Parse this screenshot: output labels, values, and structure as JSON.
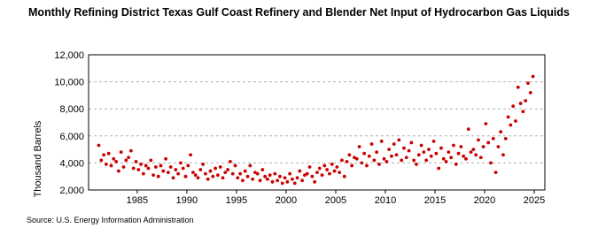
{
  "chart_data": {
    "type": "scatter",
    "title": "Monthly Refining District Texas Gulf Coast Refinery and Blender Net Input of Hydrocarbon Gas Liquids",
    "y_label": "Thousand Barrels",
    "source": "Source: U.S. Energy Information Administration",
    "color": "#cc0000",
    "grid": true,
    "xlim": [
      1980.1,
      2026.07
    ],
    "ylim": [
      2000,
      12000
    ],
    "xticks": [
      1985,
      1990,
      1995,
      2000,
      2005,
      2010,
      2015,
      2020,
      2025
    ],
    "yticks": [
      {
        "value": 2000,
        "label": "2,000"
      },
      {
        "value": 4000,
        "label": "4,000"
      },
      {
        "value": 6000,
        "label": "6,000"
      },
      {
        "value": 8000,
        "label": "8,000"
      },
      {
        "value": 10000,
        "label": "10,000"
      },
      {
        "value": 12000,
        "label": "12,000"
      }
    ],
    "x": [
      1981.125,
      1981.375,
      1981.625,
      1981.875,
      1982.125,
      1982.375,
      1982.625,
      1982.875,
      1983.125,
      1983.375,
      1983.625,
      1983.875,
      1984.125,
      1984.375,
      1984.625,
      1984.875,
      1985.125,
      1985.375,
      1985.625,
      1985.875,
      1986.125,
      1986.375,
      1986.625,
      1986.875,
      1987.125,
      1987.375,
      1987.625,
      1987.875,
      1988.125,
      1988.375,
      1988.625,
      1988.875,
      1989.125,
      1989.375,
      1989.625,
      1989.875,
      1990.125,
      1990.375,
      1990.625,
      1990.875,
      1991.125,
      1991.375,
      1991.625,
      1991.875,
      1992.125,
      1992.375,
      1992.625,
      1992.875,
      1993.125,
      1993.375,
      1993.625,
      1993.875,
      1994.125,
      1994.375,
      1994.625,
      1994.875,
      1995.125,
      1995.375,
      1995.625,
      1995.875,
      1996.125,
      1996.375,
      1996.625,
      1996.875,
      1997.125,
      1997.375,
      1997.625,
      1997.875,
      1998.125,
      1998.375,
      1998.625,
      1998.875,
      1999.125,
      1999.375,
      1999.625,
      1999.875,
      2000.125,
      2000.375,
      2000.625,
      2000.875,
      2001.125,
      2001.375,
      2001.625,
      2001.875,
      2002.125,
      2002.375,
      2002.625,
      2002.875,
      2003.125,
      2003.375,
      2003.625,
      2003.875,
      2004.125,
      2004.375,
      2004.625,
      2004.875,
      2005.125,
      2005.375,
      2005.625,
      2005.875,
      2006.125,
      2006.375,
      2006.625,
      2006.875,
      2007.125,
      2007.375,
      2007.625,
      2007.875,
      2008.125,
      2008.375,
      2008.625,
      2008.875,
      2009.125,
      2009.375,
      2009.625,
      2009.875,
      2010.125,
      2010.375,
      2010.625,
      2010.875,
      2011.125,
      2011.375,
      2011.625,
      2011.875,
      2012.125,
      2012.375,
      2012.625,
      2012.875,
      2013.125,
      2013.375,
      2013.625,
      2013.875,
      2014.125,
      2014.375,
      2014.625,
      2014.875,
      2015.125,
      2015.375,
      2015.625,
      2015.875,
      2016.125,
      2016.375,
      2016.625,
      2016.875,
      2017.125,
      2017.375,
      2017.625,
      2017.875,
      2018.125,
      2018.375,
      2018.625,
      2018.875,
      2019.125,
      2019.375,
      2019.625,
      2019.875,
      2020.125,
      2020.375,
      2020.625,
      2020.875,
      2021.125,
      2021.375,
      2021.625,
      2021.875,
      2022.125,
      2022.375,
      2022.625,
      2022.875,
      2023.125,
      2023.375,
      2023.625,
      2023.875,
      2024.125,
      2024.375,
      2024.625,
      2024.875
    ],
    "values": [
      5300,
      4200,
      4600,
      3900,
      4700,
      3800,
      4300,
      4100,
      3400,
      4800,
      3700,
      4200,
      4400,
      4900,
      3600,
      4100,
      3500,
      3900,
      3200,
      3800,
      3600,
      4200,
      3100,
      3700,
      3000,
      3800,
      3400,
      4300,
      3300,
      3700,
      2900,
      3500,
      3200,
      4000,
      3600,
      3000,
      3800,
      4600,
      3300,
      3100,
      2900,
      3500,
      3900,
      3200,
      2800,
      3400,
      3000,
      3600,
      3100,
      3700,
      2900,
      3300,
      3500,
      4100,
      3200,
      3800,
      2900,
      3200,
      2700,
      3400,
      3000,
      3800,
      2800,
      3300,
      3200,
      2700,
      3500,
      3000,
      2800,
      3100,
      2600,
      3200,
      2700,
      3000,
      2500,
      2900,
      2600,
      3200,
      2800,
      2500,
      2900,
      3400,
      2700,
      3100,
      3200,
      3700,
      3000,
      2600,
      3300,
      3600,
      3100,
      3800,
      3500,
      3200,
      3900,
      3400,
      3700,
      3300,
      4200,
      3000,
      4100,
      4600,
      3800,
      4400,
      4300,
      5200,
      4000,
      4700,
      3800,
      4500,
      5400,
      4200,
      4800,
      3900,
      5600,
      4300,
      4100,
      5000,
      4500,
      5400,
      4600,
      5700,
      4200,
      5100,
      4400,
      4900,
      5500,
      4200,
      3900,
      4600,
      5300,
      4800,
      4200,
      5000,
      4500,
      5600,
      4700,
      3600,
      5100,
      4300,
      4100,
      4800,
      4400,
      5300,
      3900,
      4700,
      5200,
      4500,
      4300,
      6500,
      4800,
      5000,
      4600,
      5700,
      4400,
      5200,
      6900,
      5500,
      4000,
      5800,
      3300,
      5200,
      6300,
      4600,
      5800,
      7400,
      6800,
      8200,
      7100,
      9600,
      8400,
      7800,
      8600,
      9900,
      9200,
      10400
    ]
  }
}
